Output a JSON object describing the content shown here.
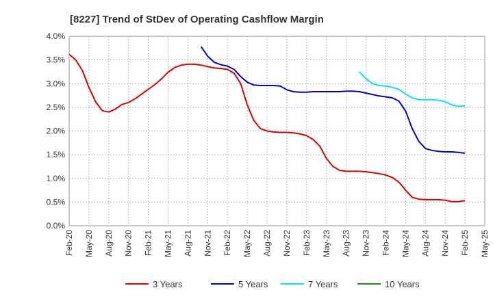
{
  "chart_data": {
    "type": "line",
    "title": "[8227]  Trend of StDev of Operating Cashflow Margin",
    "xlabel": "",
    "ylabel": "",
    "ylim": [
      0,
      4.0
    ],
    "y_ticks": [
      "0.0%",
      "0.5%",
      "1.0%",
      "1.5%",
      "2.0%",
      "2.5%",
      "3.0%",
      "3.5%",
      "4.0%"
    ],
    "x_ticks": [
      "Feb-20",
      "May-20",
      "Aug-20",
      "Nov-20",
      "Feb-21",
      "May-21",
      "Aug-21",
      "Nov-21",
      "Feb-22",
      "May-22",
      "Aug-22",
      "Nov-22",
      "Feb-23",
      "May-23",
      "Aug-23",
      "Nov-23",
      "Feb-24",
      "May-24",
      "Aug-24",
      "Nov-24",
      "Feb-25",
      "May-25"
    ],
    "grid": true,
    "legend_position": "bottom",
    "series": [
      {
        "name": "3 Years",
        "color": "#dd0000",
        "x": [
          "Feb-20",
          "Mar-20",
          "Apr-20",
          "May-20",
          "Jun-20",
          "Jul-20",
          "Aug-20",
          "Sep-20",
          "Oct-20",
          "Nov-20",
          "Dec-20",
          "Jan-21",
          "Feb-21",
          "Mar-21",
          "Apr-21",
          "May-21",
          "Jun-21",
          "Jul-21",
          "Aug-21",
          "Sep-21",
          "Oct-21",
          "Nov-21",
          "Dec-21",
          "Jan-22",
          "Feb-22",
          "Mar-22",
          "Apr-22",
          "May-22",
          "Jun-22",
          "Jul-22",
          "Aug-22",
          "Sep-22",
          "Oct-22",
          "Nov-22",
          "Dec-22",
          "Jan-23",
          "Feb-23",
          "Mar-23",
          "Apr-23",
          "May-23",
          "Jun-23",
          "Jul-23",
          "Aug-23",
          "Sep-23",
          "Oct-23",
          "Nov-23",
          "Dec-23",
          "Jan-24",
          "Feb-24",
          "Mar-24",
          "Apr-24",
          "May-24",
          "Jun-24",
          "Jul-24",
          "Aug-24",
          "Sep-24",
          "Oct-24",
          "Nov-24",
          "Dec-24",
          "Jan-25",
          "Feb-25"
        ],
        "values": [
          3.62,
          3.5,
          3.28,
          2.92,
          2.62,
          2.43,
          2.4,
          2.46,
          2.56,
          2.6,
          2.68,
          2.78,
          2.88,
          2.98,
          3.1,
          3.24,
          3.34,
          3.39,
          3.41,
          3.41,
          3.39,
          3.36,
          3.33,
          3.32,
          3.3,
          3.22,
          3.0,
          2.55,
          2.22,
          2.05,
          2.0,
          1.98,
          1.97,
          1.97,
          1.96,
          1.94,
          1.9,
          1.82,
          1.68,
          1.42,
          1.25,
          1.17,
          1.15,
          1.15,
          1.15,
          1.14,
          1.12,
          1.1,
          1.07,
          1.02,
          0.92,
          0.75,
          0.6,
          0.56,
          0.55,
          0.55,
          0.55,
          0.54,
          0.51,
          0.51,
          0.53
        ]
      },
      {
        "name": "5 Years",
        "color": "#0000cc",
        "x": [
          "Oct-21",
          "Nov-21",
          "Dec-21",
          "Jan-22",
          "Feb-22",
          "Mar-22",
          "Apr-22",
          "May-22",
          "Jun-22",
          "Jul-22",
          "Aug-22",
          "Sep-22",
          "Oct-22",
          "Nov-22",
          "Dec-22",
          "Jan-23",
          "Feb-23",
          "Mar-23",
          "Apr-23",
          "May-23",
          "Jun-23",
          "Jul-23",
          "Aug-23",
          "Sep-23",
          "Oct-23",
          "Nov-23",
          "Dec-23",
          "Jan-24",
          "Feb-24",
          "Mar-24",
          "Apr-24",
          "May-24",
          "Jun-24",
          "Jul-24",
          "Aug-24",
          "Sep-24",
          "Oct-24",
          "Nov-24",
          "Dec-24",
          "Jan-25",
          "Feb-25"
        ],
        "values": [
          3.78,
          3.58,
          3.45,
          3.4,
          3.37,
          3.3,
          3.15,
          3.03,
          2.97,
          2.96,
          2.96,
          2.96,
          2.95,
          2.87,
          2.83,
          2.82,
          2.82,
          2.83,
          2.83,
          2.83,
          2.83,
          2.83,
          2.84,
          2.84,
          2.83,
          2.8,
          2.77,
          2.74,
          2.72,
          2.7,
          2.63,
          2.42,
          2.05,
          1.78,
          1.63,
          1.59,
          1.57,
          1.56,
          1.56,
          1.55,
          1.53
        ]
      },
      {
        "name": "7 Years",
        "color": "#00e5e5",
        "x": [
          "Oct-23",
          "Nov-23",
          "Dec-23",
          "Jan-24",
          "Feb-24",
          "Mar-24",
          "Apr-24",
          "May-24",
          "Jun-24",
          "Jul-24",
          "Aug-24",
          "Sep-24",
          "Oct-24",
          "Nov-24",
          "Dec-24",
          "Jan-25",
          "Feb-25"
        ],
        "values": [
          3.25,
          3.1,
          3.0,
          2.96,
          2.95,
          2.92,
          2.88,
          2.78,
          2.7,
          2.66,
          2.66,
          2.66,
          2.65,
          2.62,
          2.55,
          2.52,
          2.53
        ]
      },
      {
        "name": "10 Years",
        "color": "#228b22",
        "x": [],
        "values": []
      }
    ]
  }
}
